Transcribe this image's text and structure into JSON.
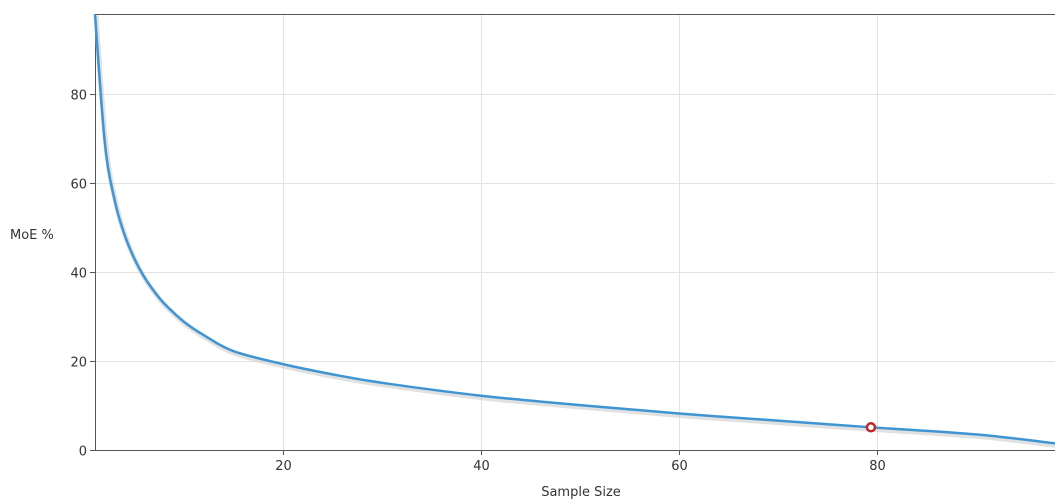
{
  "chart_data": {
    "type": "line",
    "title": "",
    "xlabel": "Sample Size",
    "ylabel": "MoE %",
    "xlim": [
      1,
      98
    ],
    "ylim": [
      0,
      98
    ],
    "x_ticks": [
      20,
      40,
      60,
      80
    ],
    "y_ticks": [
      0,
      20,
      40,
      60,
      80
    ],
    "grid": true,
    "colors": {
      "series": "#3f95d3",
      "shadow": "#c8c8c8",
      "marker_stroke": "#c0272d",
      "marker_fill": "#ffffff"
    },
    "series": [
      {
        "x": [
          1,
          2,
          3,
          4,
          5,
          6,
          7,
          8,
          10,
          12,
          15,
          20,
          25,
          30,
          40,
          50,
          60,
          70,
          79.4,
          90,
          98
        ],
        "y": [
          98,
          69,
          56,
          48.3,
          42.9,
          38.8,
          35.6,
          32.9,
          28.8,
          25.8,
          22.2,
          19.3,
          17,
          15.1,
          12.2,
          10.1,
          8.2,
          6.6,
          5.1,
          3.5,
          1.5
        ]
      }
    ],
    "highlight_point": {
      "x": 79.4,
      "y": 5.1
    }
  }
}
